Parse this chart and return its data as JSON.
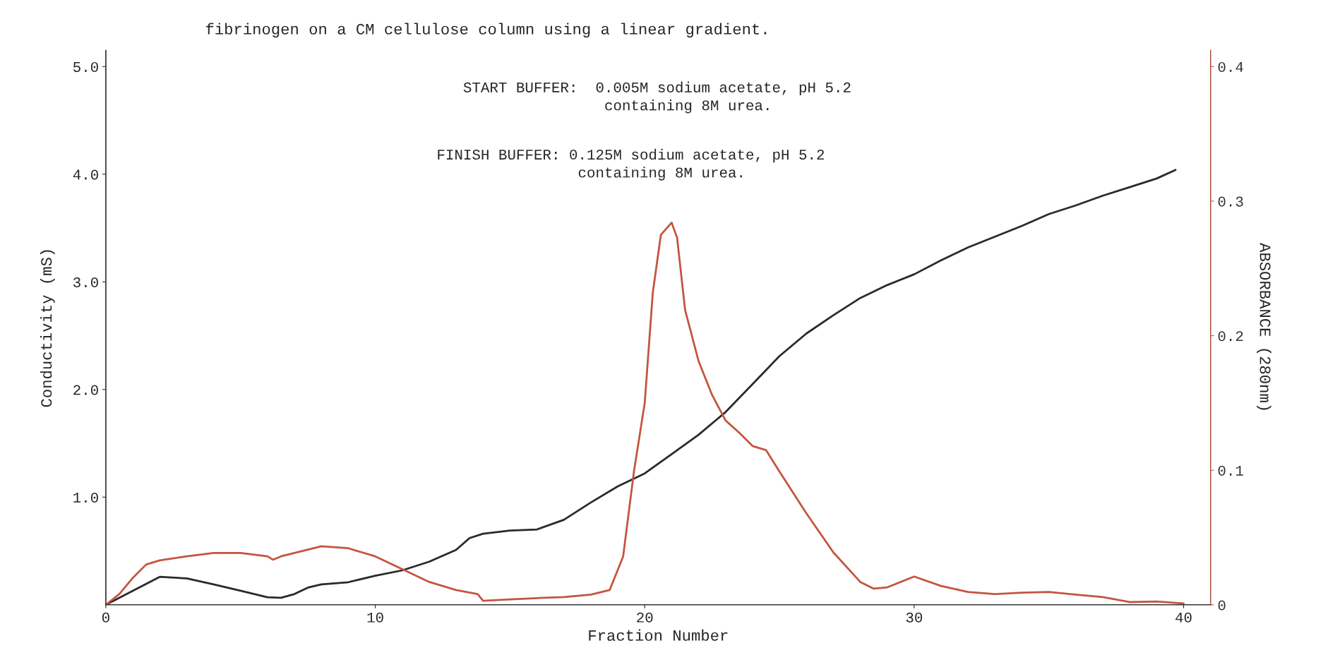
{
  "chart_data": {
    "type": "line",
    "title": "fibrinogen on a CM cellulose column using a linear gradient.",
    "xlabel": "Fraction Number",
    "ylabel": "Conductivity (mS)",
    "y2label": "ABSORBANCE (280nm)",
    "annotations": [
      "START BUFFER:  0.005M sodium acetate, pH 5.2\n                containing 8M urea.",
      "FINISH BUFFER: 0.125M sodium acetate, pH 5.2\n                containing 8M urea."
    ],
    "xlim": [
      0,
      41
    ],
    "xticks": [
      0,
      10,
      20,
      30,
      40
    ],
    "ylim": [
      0,
      5.15
    ],
    "yticks": [
      {
        "value": 1,
        "label": "1.0"
      },
      {
        "value": 2,
        "label": "2.0"
      },
      {
        "value": 3,
        "label": "3.0"
      },
      {
        "value": 4,
        "label": "4.0"
      },
      {
        "value": 5,
        "label": "5.0"
      }
    ],
    "y2lim": [
      0,
      0.412
    ],
    "y2ticks": [
      0,
      0.1,
      0.2,
      0.3,
      0.4
    ],
    "grid": false,
    "legend": false,
    "series": [
      {
        "color": "#2a2a2a",
        "x": [
          0,
          1,
          2,
          3,
          4,
          5,
          6,
          6.5,
          7,
          7.5,
          8,
          9,
          10,
          11,
          12,
          13,
          13.5,
          14,
          15,
          16,
          17,
          18,
          19,
          20,
          21,
          22,
          23,
          24,
          25,
          26,
          27,
          28,
          29,
          30,
          31,
          32,
          33,
          34,
          35,
          36,
          37,
          38,
          39,
          39.7
        ],
        "values": [
          0.0,
          0.13,
          0.26,
          0.245,
          0.19,
          0.13,
          0.07,
          0.065,
          0.1,
          0.16,
          0.19,
          0.21,
          0.27,
          0.32,
          0.4,
          0.51,
          0.62,
          0.66,
          0.69,
          0.7,
          0.79,
          0.95,
          1.1,
          1.22,
          1.4,
          1.58,
          1.79,
          2.05,
          2.31,
          2.52,
          2.69,
          2.85,
          2.97,
          3.07,
          3.2,
          3.32,
          3.42,
          3.52,
          3.63,
          3.71,
          3.8,
          3.88,
          3.96,
          4.04
        ]
      },
      {
        "color": "#c4553f",
        "axis": "y2",
        "x": [
          0,
          0.5,
          1,
          1.5,
          2,
          3,
          4,
          5,
          6,
          6.2,
          6.5,
          7,
          8,
          9,
          10,
          11,
          12,
          13,
          13.8,
          14,
          15,
          16,
          17,
          18,
          18.7,
          19.2,
          19.6,
          20,
          20.3,
          20.6,
          21,
          21.2,
          21.5,
          22,
          22.5,
          23,
          23.5,
          24,
          24.5,
          25,
          26,
          27,
          28,
          28.5,
          29,
          30,
          31,
          32,
          33,
          34,
          35,
          36,
          37,
          38,
          39,
          40
        ],
        "values": [
          0,
          0.008,
          0.02,
          0.03,
          0.033,
          0.036,
          0.0385,
          0.0385,
          0.036,
          0.0335,
          0.036,
          0.0385,
          0.0435,
          0.042,
          0.036,
          0.0265,
          0.017,
          0.011,
          0.008,
          0.003,
          0.004,
          0.005,
          0.0057,
          0.0076,
          0.011,
          0.036,
          0.099,
          0.15,
          0.232,
          0.275,
          0.284,
          0.273,
          0.219,
          0.181,
          0.156,
          0.137,
          0.128,
          0.118,
          0.115,
          0.099,
          0.068,
          0.039,
          0.017,
          0.012,
          0.013,
          0.021,
          0.014,
          0.0095,
          0.008,
          0.009,
          0.0095,
          0.0076,
          0.0057,
          0.002,
          0.0025,
          0.001
        ]
      }
    ]
  }
}
